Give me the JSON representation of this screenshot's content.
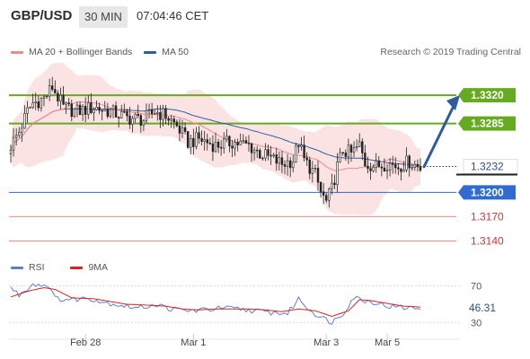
{
  "header": {
    "symbol": "GBP/USD",
    "timeframe": "30 MIN",
    "time": "07:04:46 CET"
  },
  "legend": {
    "items": [
      {
        "label": "MA 20 + Bollinger Bands",
        "color": "#f08a8a"
      },
      {
        "label": "MA 50",
        "color": "#2f5f9e"
      }
    ],
    "credit": "Research © 2019 Trading Central"
  },
  "rsi_legend": {
    "items": [
      {
        "label": "RSI",
        "color": "#5b7ed6"
      },
      {
        "label": "9MA",
        "color": "#e02020"
      }
    ]
  },
  "chart_data": [
    {
      "type": "candlestick",
      "x_ticks": [
        "Feb 28",
        "Mar 1",
        "Mar 3",
        "Mar 5"
      ],
      "ylim": [
        1.3125,
        1.336
      ],
      "current_price": "1.3232",
      "levels": [
        {
          "label": "1.3320",
          "value": 1.332,
          "color": "#66aa22",
          "style": "resistance"
        },
        {
          "label": "1.3285",
          "value": 1.3285,
          "color": "#66aa22",
          "style": "resistance"
        },
        {
          "label": "1.3200",
          "value": 1.32,
          "color": "#2f6bd0",
          "style": "support"
        },
        {
          "label": "1.3170",
          "value": 1.317,
          "color": "#f08a8a",
          "style": "support"
        },
        {
          "label": "1.3140",
          "value": 1.314,
          "color": "#f08a8a",
          "style": "support"
        }
      ],
      "anchors": [
        [
          0,
          1.3258
        ],
        [
          3,
          1.3275
        ],
        [
          6,
          1.33
        ],
        [
          8,
          1.331
        ],
        [
          12,
          1.3316
        ],
        [
          15,
          1.333
        ],
        [
          19,
          1.3305
        ],
        [
          24,
          1.33
        ],
        [
          30,
          1.3305
        ],
        [
          36,
          1.33
        ],
        [
          42,
          1.3292
        ],
        [
          48,
          1.329
        ],
        [
          52,
          1.33
        ],
        [
          56,
          1.3295
        ],
        [
          60,
          1.3282
        ],
        [
          64,
          1.3262
        ],
        [
          68,
          1.3266
        ],
        [
          74,
          1.3258
        ],
        [
          80,
          1.3262
        ],
        [
          86,
          1.3258
        ],
        [
          90,
          1.3248
        ],
        [
          94,
          1.3242
        ],
        [
          98,
          1.3235
        ],
        [
          102,
          1.324
        ],
        [
          104,
          1.3262
        ],
        [
          106,
          1.324
        ],
        [
          110,
          1.3222
        ],
        [
          112,
          1.32
        ],
        [
          114,
          1.3188
        ],
        [
          116,
          1.3204
        ],
        [
          118,
          1.3232
        ],
        [
          120,
          1.3252
        ],
        [
          123,
          1.3248
        ],
        [
          126,
          1.3258
        ],
        [
          128,
          1.3236
        ],
        [
          132,
          1.3232
        ],
        [
          136,
          1.3236
        ],
        [
          140,
          1.3232
        ],
        [
          144,
          1.3238
        ],
        [
          148,
          1.323
        ]
      ]
    },
    {
      "type": "line",
      "title": "RSI",
      "y_ticks": [
        "70",
        "30"
      ],
      "ylim": [
        22,
        82
      ],
      "current_value": "46.31",
      "series": [
        {
          "name": "RSI",
          "anchors": [
            [
              0,
              68
            ],
            [
              3,
              60
            ],
            [
              8,
              72
            ],
            [
              14,
              70
            ],
            [
              16,
              56
            ],
            [
              22,
              55
            ],
            [
              28,
              57
            ],
            [
              34,
              52
            ],
            [
              40,
              49
            ],
            [
              46,
              46
            ],
            [
              52,
              50
            ],
            [
              58,
              45
            ],
            [
              64,
              43
            ],
            [
              70,
              44
            ],
            [
              76,
              46
            ],
            [
              82,
              45
            ],
            [
              88,
              43
            ],
            [
              94,
              41
            ],
            [
              100,
              40
            ],
            [
              104,
              56
            ],
            [
              108,
              44
            ],
            [
              112,
              36
            ],
            [
              116,
              31
            ],
            [
              120,
              40
            ],
            [
              124,
              58
            ],
            [
              128,
              54
            ],
            [
              132,
              52
            ],
            [
              136,
              48
            ],
            [
              140,
              47
            ],
            [
              144,
              46
            ],
            [
              148,
              46
            ]
          ]
        },
        {
          "name": "9MA",
          "anchors": [
            [
              0,
              58
            ],
            [
              6,
              64
            ],
            [
              12,
              68
            ],
            [
              16,
              66
            ],
            [
              22,
              57
            ],
            [
              30,
              56
            ],
            [
              36,
              53
            ],
            [
              42,
              50
            ],
            [
              50,
              49
            ],
            [
              56,
              48
            ],
            [
              62,
              45
            ],
            [
              68,
              44
            ],
            [
              74,
              45
            ],
            [
              80,
              45
            ],
            [
              86,
              45
            ],
            [
              92,
              44
            ],
            [
              98,
              42
            ],
            [
              104,
              45
            ],
            [
              110,
              43
            ],
            [
              116,
              37
            ],
            [
              122,
              43
            ],
            [
              126,
              55
            ],
            [
              130,
              54
            ],
            [
              136,
              51
            ],
            [
              142,
              48
            ],
            [
              148,
              47
            ]
          ]
        }
      ]
    }
  ]
}
